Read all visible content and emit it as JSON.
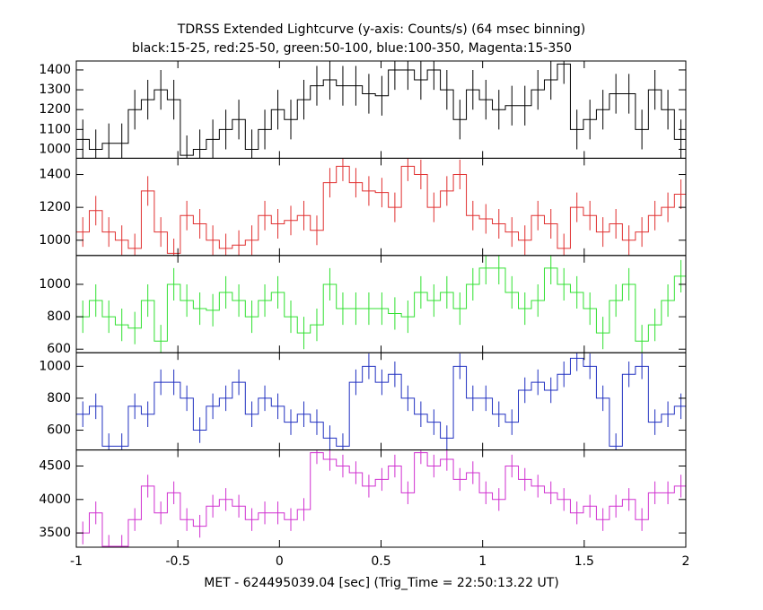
{
  "chart_data": {
    "type": "step",
    "title": "TDRSS Extended Lightcurve (y-axis: Counts/s) (64 msec binning)",
    "subtitle": "black:15-25, red:25-50, green:50-100, blue:100-350, Magenta:15-350",
    "xlabel": "MET - 624495039.04 [sec] (Trig_Time = 22:50:13.22 UT)",
    "xlim": [
      -1,
      2
    ],
    "xticks": [
      -1,
      -0.5,
      0,
      0.5,
      1,
      1.5,
      2
    ],
    "bin_width": 0.064,
    "x": [
      -1,
      -0.936,
      -0.872,
      -0.808,
      -0.744,
      -0.68,
      -0.616,
      -0.552,
      -0.488,
      -0.424,
      -0.36,
      -0.296,
      -0.232,
      -0.168,
      -0.104,
      -0.04,
      0.024,
      0.088,
      0.152,
      0.216,
      0.28,
      0.344,
      0.408,
      0.472,
      0.536,
      0.6,
      0.664,
      0.728,
      0.792,
      0.856,
      0.92,
      0.984,
      1.048,
      1.112,
      1.176,
      1.24,
      1.304,
      1.368,
      1.432,
      1.496,
      1.56,
      1.624,
      1.688,
      1.752,
      1.816,
      1.88,
      1.944
    ],
    "series": [
      {
        "color": "#000000",
        "error": 100,
        "ylim": [
          955,
          1445
        ],
        "yticks": [
          1000,
          1100,
          1200,
          1300,
          1400
        ],
        "values": [
          1050,
          1000,
          1030,
          1030,
          1200,
          1250,
          1300,
          1250,
          970,
          1000,
          1050,
          1100,
          1150,
          1000,
          1100,
          1200,
          1150,
          1250,
          1320,
          1350,
          1320,
          1320,
          1280,
          1270,
          1400,
          1400,
          1350,
          1400,
          1300,
          1150,
          1300,
          1250,
          1200,
          1220,
          1220,
          1300,
          1350,
          1430,
          1100,
          1150,
          1200,
          1280,
          1280,
          1100,
          1300,
          1200,
          1050
        ]
      },
      {
        "color": "#e03030",
        "error": 90,
        "ylim": [
          907,
          1499
        ],
        "yticks": [
          1000,
          1200,
          1400
        ],
        "values": [
          1050,
          1180,
          1050,
          1000,
          950,
          1300,
          1050,
          920,
          1150,
          1100,
          1000,
          950,
          970,
          1000,
          1150,
          1100,
          1120,
          1150,
          1060,
          1350,
          1450,
          1350,
          1300,
          1290,
          1200,
          1450,
          1400,
          1200,
          1300,
          1400,
          1150,
          1130,
          1100,
          1050,
          1000,
          1150,
          1100,
          950,
          1200,
          1150,
          1050,
          1100,
          1000,
          1050,
          1150,
          1200,
          1280
        ]
      },
      {
        "color": "#30e030",
        "error": 100,
        "ylim": [
          578,
          1178
        ],
        "yticks": [
          600,
          800,
          1000
        ],
        "values": [
          800,
          900,
          800,
          750,
          730,
          900,
          650,
          1000,
          900,
          850,
          840,
          950,
          900,
          800,
          900,
          950,
          800,
          700,
          750,
          1000,
          850,
          850,
          850,
          850,
          820,
          800,
          950,
          900,
          950,
          850,
          1000,
          1100,
          1100,
          950,
          850,
          900,
          1100,
          1000,
          950,
          850,
          700,
          900,
          1000,
          650,
          750,
          900,
          1050
        ]
      },
      {
        "color": "#2030c0",
        "error": 80,
        "ylim": [
          476,
          1085
        ],
        "yticks": [
          600,
          800,
          1000
        ],
        "values": [
          700,
          750,
          500,
          500,
          750,
          700,
          900,
          900,
          800,
          600,
          750,
          800,
          900,
          700,
          800,
          750,
          650,
          700,
          650,
          550,
          500,
          900,
          1000,
          900,
          950,
          800,
          700,
          650,
          550,
          1000,
          800,
          800,
          700,
          650,
          850,
          900,
          850,
          950,
          1050,
          1000,
          800,
          500,
          950,
          1000,
          650,
          700,
          750
        ]
      },
      {
        "color": "#d030d0",
        "error": 170,
        "ylim": [
          3287,
          4740
        ],
        "yticks": [
          3500,
          4000,
          4500
        ],
        "values": [
          3500,
          3800,
          3300,
          3300,
          3700,
          4200,
          3800,
          4100,
          3700,
          3600,
          3900,
          4000,
          3900,
          3700,
          3800,
          3800,
          3700,
          3850,
          4700,
          4600,
          4500,
          4400,
          4200,
          4300,
          4500,
          4100,
          4700,
          4500,
          4600,
          4300,
          4400,
          4100,
          4000,
          4500,
          4300,
          4200,
          4100,
          4000,
          3800,
          3900,
          3700,
          3900,
          4000,
          3700,
          4100,
          4100,
          4200
        ]
      }
    ]
  }
}
